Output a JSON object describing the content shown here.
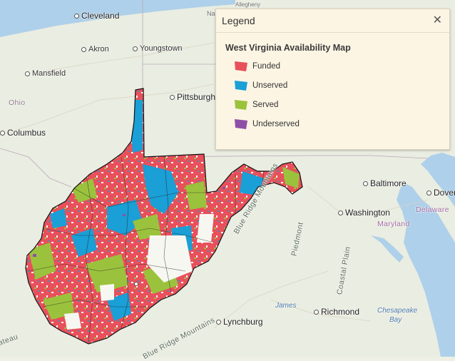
{
  "legend": {
    "title": "Legend",
    "close_icon": "close-icon",
    "map_title": "West Virginia Availability Map",
    "items": [
      {
        "label": "Funded",
        "color": "#e8505b"
      },
      {
        "label": "Unserved",
        "color": "#1a9fd6"
      },
      {
        "label": "Served",
        "color": "#9bc23d"
      },
      {
        "label": "Underserved",
        "color": "#8e4fa6"
      }
    ]
  },
  "map": {
    "cities": {
      "cleveland": "Cleveland",
      "akron": "Akron",
      "youngstown": "Youngstown",
      "mansfield": "Mansfield",
      "pittsburgh": "Pittsburgh",
      "columbus": "Columbus",
      "baltimore": "Baltimore",
      "dover": "Dover",
      "washington": "Washington",
      "richmond": "Richmond",
      "lynchburg": "Lynchburg",
      "allegheny": "Allegheny",
      "na": "Na"
    },
    "states": {
      "ohio": "Ohio",
      "delaware": "Delaware",
      "maryland": "Maryland"
    },
    "features": {
      "blue_ridge_north": "Blue Ridge Mountains",
      "blue_ridge_south": "Blue Ridge Mountains",
      "piedmont": "Piedmont",
      "coastal_plain": "Coastal Plain",
      "james": "James",
      "chesapeake": "Chesapeake",
      "bay": "Bay",
      "plateau": "ateau"
    },
    "colors": {
      "funded": "#e8505b",
      "unserved": "#1a9fd6",
      "served": "#9bc23d",
      "underserved": "#8e4fa6",
      "water": "#aed0ea",
      "land": "#eef0e6"
    }
  }
}
